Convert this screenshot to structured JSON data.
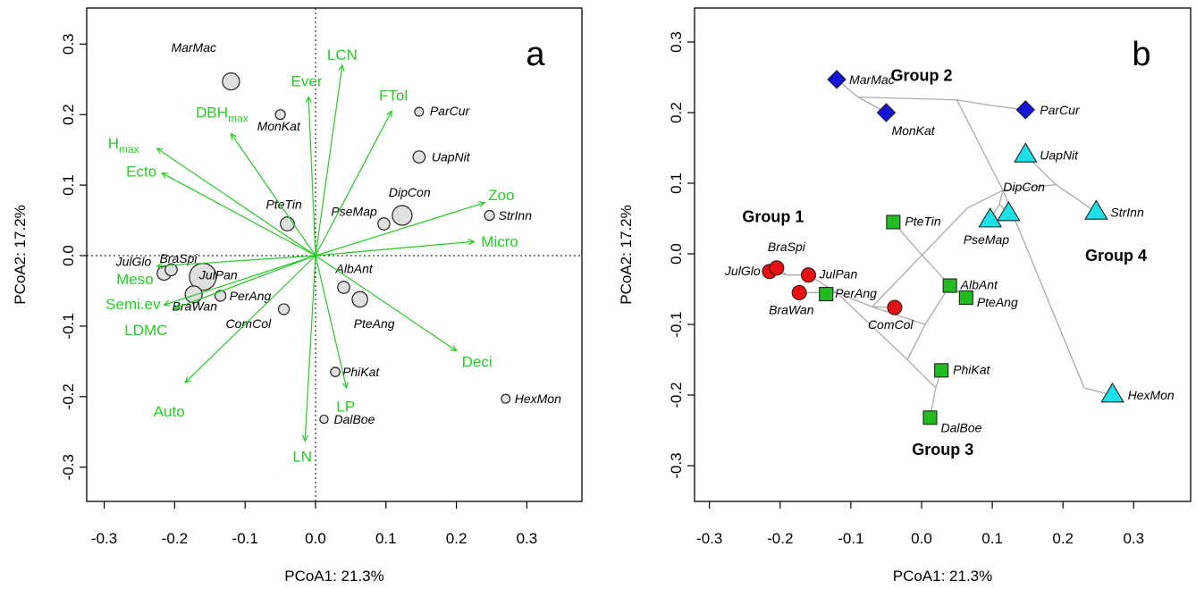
{
  "chart_data": [
    {
      "type": "scatter",
      "panel_label": "a",
      "xlabel": "PCoA1: 21.3%",
      "ylabel": "PCoA2: 17.2%",
      "xlim": [
        -0.3,
        0.3
      ],
      "ylim": [
        -0.3,
        0.3
      ],
      "xticks": [
        "-0.3",
        "-0.2",
        "-0.1",
        "0.0",
        "0.1",
        "0.2",
        "0.3"
      ],
      "yticks": [
        "-0.3",
        "-0.2",
        "-0.1",
        "0.0",
        "0.1",
        "0.2",
        "0.3"
      ],
      "reference_lines": {
        "x": 0,
        "y": 0,
        "style": "dotted"
      },
      "grid": false,
      "point_fill": "#e0e0e0",
      "arrow_color": "#22cc22",
      "points": [
        {
          "name": "MarMac",
          "x": -0.12,
          "y": 0.247,
          "size": 3.0
        },
        {
          "name": "MonKat",
          "x": -0.05,
          "y": 0.2,
          "size": 1.0
        },
        {
          "name": "ParCur",
          "x": 0.147,
          "y": 0.204,
          "size": 0.8
        },
        {
          "name": "UapNit",
          "x": 0.147,
          "y": 0.14,
          "size": 1.5
        },
        {
          "name": "DipCon",
          "x": 0.123,
          "y": 0.057,
          "size": 4.0
        },
        {
          "name": "PseMap",
          "x": 0.097,
          "y": 0.045,
          "size": 1.5
        },
        {
          "name": "StrInn",
          "x": 0.247,
          "y": 0.057,
          "size": 1.0
        },
        {
          "name": "PteTin",
          "x": -0.04,
          "y": 0.045,
          "size": 2.0
        },
        {
          "name": "JulGlo",
          "x": -0.215,
          "y": -0.025,
          "size": 2.0
        },
        {
          "name": "BraSpi",
          "x": -0.205,
          "y": -0.02,
          "size": 1.5
        },
        {
          "name": "JulPan",
          "x": -0.16,
          "y": -0.03,
          "size": 7.5
        },
        {
          "name": "BraWan",
          "x": -0.173,
          "y": -0.055,
          "size": 3.0
        },
        {
          "name": "PerAng",
          "x": -0.135,
          "y": -0.057,
          "size": 1.2
        },
        {
          "name": "ComCol",
          "x": -0.045,
          "y": -0.076,
          "size": 1.2
        },
        {
          "name": "AlbAnt",
          "x": 0.04,
          "y": -0.045,
          "size": 1.5
        },
        {
          "name": "PteAng",
          "x": 0.063,
          "y": -0.062,
          "size": 2.5
        },
        {
          "name": "PhiKat",
          "x": 0.028,
          "y": -0.165,
          "size": 0.9
        },
        {
          "name": "DalBoe",
          "x": 0.012,
          "y": -0.232,
          "size": 0.7
        },
        {
          "name": "HexMon",
          "x": 0.27,
          "y": -0.203,
          "size": 0.8
        }
      ],
      "arrows": [
        {
          "label": "LCN",
          "x": 0.038,
          "y": 0.27
        },
        {
          "label": "Ever",
          "x": -0.01,
          "y": 0.225
        },
        {
          "label": "FTol",
          "x": 0.108,
          "y": 0.205
        },
        {
          "label": "Hmax",
          "label_main": "H",
          "label_sub": "max",
          "x": -0.225,
          "y": 0.152
        },
        {
          "label": "DBHmax",
          "label_main": "DBH",
          "label_sub": "max",
          "x": -0.12,
          "y": 0.173
        },
        {
          "label": "Ecto",
          "x": -0.218,
          "y": 0.117
        },
        {
          "label": "Zoo",
          "x": 0.24,
          "y": 0.075
        },
        {
          "label": "Micro",
          "x": 0.225,
          "y": 0.02
        },
        {
          "label": "Meso",
          "x": -0.225,
          "y": -0.015
        },
        {
          "label": "Semi.ev",
          "x": -0.215,
          "y": -0.07
        },
        {
          "label": "LDMC",
          "x": -0.2,
          "y": -0.075
        },
        {
          "label": "Auto",
          "x": -0.185,
          "y": -0.18
        },
        {
          "label": "Deci",
          "x": 0.2,
          "y": -0.135
        },
        {
          "label": "LP",
          "x": 0.044,
          "y": -0.188
        },
        {
          "label": "LN",
          "x": -0.015,
          "y": -0.263
        }
      ]
    },
    {
      "type": "scatter",
      "panel_label": "b",
      "xlabel": "PCoA1: 21.3%",
      "ylabel": "PCoA2: 17.2%",
      "xlim": [
        -0.3,
        0.3
      ],
      "ylim": [
        -0.3,
        0.3
      ],
      "xticks": [
        "-0.3",
        "-0.2",
        "-0.1",
        "0.0",
        "0.1",
        "0.2",
        "0.3"
      ],
      "yticks": [
        "-0.3",
        "-0.2",
        "-0.1",
        "0.0",
        "0.1",
        "0.2",
        "0.3"
      ],
      "grid": false,
      "groups": [
        {
          "name": "Group 1",
          "marker": "circle",
          "color": "#e81010"
        },
        {
          "name": "Group 2",
          "marker": "diamond",
          "color": "#1414d8"
        },
        {
          "name": "Group 3",
          "marker": "square",
          "color": "#22bb22"
        },
        {
          "name": "Group 4",
          "marker": "triangle",
          "color": "#1ee0e8"
        }
      ],
      "points": [
        {
          "name": "MarMac",
          "x": -0.12,
          "y": 0.247,
          "group": 2
        },
        {
          "name": "MonKat",
          "x": -0.05,
          "y": 0.2,
          "group": 2
        },
        {
          "name": "ParCur",
          "x": 0.147,
          "y": 0.204,
          "group": 2
        },
        {
          "name": "UapNit",
          "x": 0.147,
          "y": 0.14,
          "group": 4
        },
        {
          "name": "DipCon",
          "x": 0.123,
          "y": 0.057,
          "group": 4
        },
        {
          "name": "PseMap",
          "x": 0.097,
          "y": 0.048,
          "group": 4
        },
        {
          "name": "StrInn",
          "x": 0.247,
          "y": 0.059,
          "group": 4
        },
        {
          "name": "HexMon",
          "x": 0.27,
          "y": -0.2,
          "group": 4
        },
        {
          "name": "PteTin",
          "x": -0.04,
          "y": 0.045,
          "group": 3
        },
        {
          "name": "AlbAnt",
          "x": 0.04,
          "y": -0.045,
          "group": 3
        },
        {
          "name": "PteAng",
          "x": 0.063,
          "y": -0.062,
          "group": 3
        },
        {
          "name": "PerAng",
          "x": -0.135,
          "y": -0.057,
          "group": 3
        },
        {
          "name": "PhiKat",
          "x": 0.028,
          "y": -0.165,
          "group": 3
        },
        {
          "name": "DalBoe",
          "x": 0.012,
          "y": -0.232,
          "group": 3
        },
        {
          "name": "JulGlo",
          "x": -0.215,
          "y": -0.025,
          "group": 1
        },
        {
          "name": "BraSpi",
          "x": -0.205,
          "y": -0.02,
          "group": 1
        },
        {
          "name": "JulPan",
          "x": -0.16,
          "y": -0.03,
          "group": 1
        },
        {
          "name": "BraWan",
          "x": -0.173,
          "y": -0.055,
          "group": 1
        },
        {
          "name": "ComCol",
          "x": -0.038,
          "y": -0.076,
          "group": 1
        }
      ],
      "tree_segments": [
        [
          -0.12,
          0.247,
          -0.09,
          0.222
        ],
        [
          -0.05,
          0.2,
          -0.09,
          0.222
        ],
        [
          -0.09,
          0.222,
          0.05,
          0.218
        ],
        [
          0.147,
          0.204,
          0.1,
          0.21
        ],
        [
          0.1,
          0.21,
          0.05,
          0.218
        ],
        [
          0.05,
          0.218,
          0.115,
          0.09
        ],
        [
          0.147,
          0.14,
          0.19,
          0.098
        ],
        [
          0.247,
          0.059,
          0.19,
          0.098
        ],
        [
          0.19,
          0.098,
          0.115,
          0.09
        ],
        [
          0.123,
          0.057,
          0.11,
          0.07
        ],
        [
          0.097,
          0.048,
          0.11,
          0.07
        ],
        [
          0.11,
          0.07,
          0.115,
          0.09
        ],
        [
          0.115,
          0.09,
          0.23,
          -0.19
        ],
        [
          0.27,
          -0.2,
          0.23,
          -0.19
        ],
        [
          0.115,
          0.09,
          0.065,
          0.065
        ],
        [
          0.065,
          0.065,
          -0.07,
          -0.075
        ],
        [
          -0.215,
          -0.025,
          -0.19,
          -0.03
        ],
        [
          -0.205,
          -0.02,
          -0.19,
          -0.03
        ],
        [
          -0.19,
          -0.03,
          -0.16,
          -0.03
        ],
        [
          -0.16,
          -0.03,
          -0.12,
          -0.055
        ],
        [
          -0.173,
          -0.055,
          -0.12,
          -0.055
        ],
        [
          -0.135,
          -0.057,
          -0.12,
          -0.055
        ],
        [
          -0.12,
          -0.055,
          -0.07,
          -0.075
        ],
        [
          -0.038,
          -0.076,
          -0.07,
          -0.075
        ],
        [
          -0.04,
          0.045,
          -0.01,
          0.01
        ],
        [
          -0.01,
          0.01,
          0.04,
          -0.045
        ],
        [
          0.063,
          -0.062,
          0.04,
          -0.045
        ],
        [
          0.04,
          -0.045,
          0.005,
          -0.1
        ],
        [
          -0.07,
          -0.075,
          0.005,
          -0.1
        ],
        [
          0.028,
          -0.165,
          0.02,
          -0.19
        ],
        [
          0.012,
          -0.232,
          0.02,
          -0.19
        ],
        [
          0.02,
          -0.19,
          -0.02,
          -0.15
        ],
        [
          0.005,
          -0.1,
          -0.02,
          -0.15
        ],
        [
          -0.12,
          -0.055,
          -0.02,
          -0.15
        ]
      ],
      "group_labels": [
        {
          "text": "Group 1",
          "x": -0.21,
          "y": 0.045
        },
        {
          "text": "Group 2",
          "x": 0.0,
          "y": 0.245
        },
        {
          "text": "Group 3",
          "x": 0.03,
          "y": -0.285
        },
        {
          "text": "Group 4",
          "x": 0.275,
          "y": -0.01
        }
      ]
    }
  ]
}
